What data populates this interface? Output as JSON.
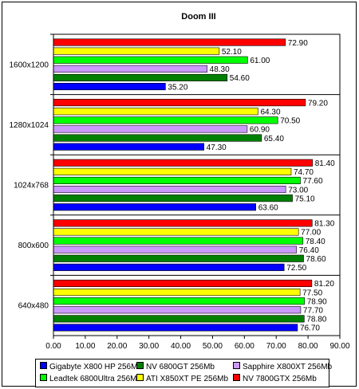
{
  "chart_data": {
    "type": "bar",
    "orientation": "horizontal",
    "title": "Doom III",
    "xlabel": "",
    "ylabel": "",
    "xlim": [
      0,
      90
    ],
    "x_ticks": [
      "0.00",
      "10.00",
      "20.00",
      "30.00",
      "40.00",
      "50.00",
      "60.00",
      "70.00",
      "80.00",
      "90.00"
    ],
    "grid": false,
    "legend_position": "bottom",
    "categories": [
      "1600x1200",
      "1280x1024",
      "1024x768",
      "800x600",
      "640x480"
    ],
    "series": [
      {
        "name": "NV 7800GTX 256Mb",
        "color": "#ff0000",
        "values": [
          72.9,
          79.2,
          81.4,
          81.3,
          81.2
        ],
        "labels": [
          "72.90",
          "79.20",
          "81.40",
          "81.30",
          "81.20"
        ]
      },
      {
        "name": "ATI X850XT PE 256Mb",
        "color": "#ffff00",
        "values": [
          52.1,
          64.3,
          74.7,
          77.0,
          77.5
        ],
        "labels": [
          "52.10",
          "64.30",
          "74.70",
          "77.00",
          "77.50"
        ]
      },
      {
        "name": "Leadtek 6800Ultra 256Mb",
        "color": "#00ff00",
        "values": [
          61.0,
          70.5,
          77.6,
          78.4,
          78.9
        ],
        "labels": [
          "61.00",
          "70.50",
          "77.60",
          "78.40",
          "78.90"
        ]
      },
      {
        "name": "Sapphire X800XT 256Mb",
        "color": "#cc99ff",
        "values": [
          48.3,
          60.9,
          73.0,
          76.4,
          77.7
        ],
        "labels": [
          "48.30",
          "60.90",
          "73.00",
          "76.40",
          "77.70"
        ]
      },
      {
        "name": "NV 6800GT 256Mb",
        "color": "#008000",
        "values": [
          54.6,
          65.4,
          75.1,
          78.6,
          78.8
        ],
        "labels": [
          "54.60",
          "65.40",
          "75.10",
          "78.60",
          "78.80"
        ]
      },
      {
        "name": "Gigabyte X800 HP 256Mb",
        "color": "#0000ff",
        "values": [
          35.2,
          47.3,
          63.6,
          72.5,
          76.7
        ],
        "labels": [
          "35.20",
          "47.30",
          "63.60",
          "72.50",
          "76.70"
        ]
      }
    ],
    "legend_order": [
      5,
      4,
      3,
      2,
      1,
      0
    ]
  }
}
